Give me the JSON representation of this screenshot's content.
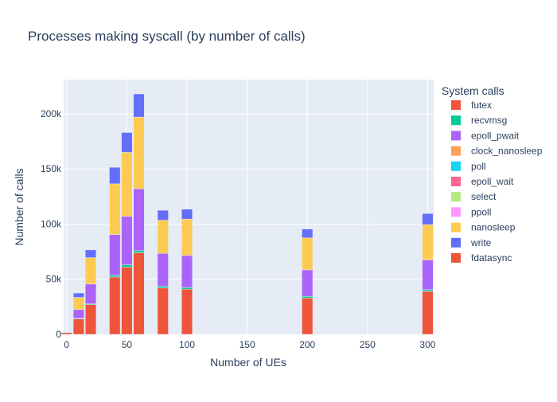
{
  "chart_data": {
    "type": "bar",
    "stacked": true,
    "title": "Processes making syscall (by number of calls)",
    "xlabel": "Number of UEs",
    "ylabel": "Number of calls",
    "xlim": [
      -2.5,
      305
    ],
    "ylim": [
      0,
      231000
    ],
    "x_ticks": [
      0,
      50,
      100,
      150,
      200,
      250,
      300
    ],
    "x_tick_labels": [
      "0",
      "50",
      "100",
      "150",
      "200",
      "250",
      "300"
    ],
    "y_ticks": [
      0,
      50000,
      100000,
      150000,
      200000
    ],
    "y_tick_labels": [
      "0",
      "50k",
      "100k",
      "150k",
      "200k"
    ],
    "grid": true,
    "legend_title": "System calls",
    "legend_position": "right",
    "x": [
      0,
      10,
      20,
      40,
      50,
      60,
      80,
      100,
      200,
      300
    ],
    "series": [
      {
        "name": "futex",
        "color": "#EF553B",
        "values": [
          1500,
          14000,
          27000,
          52000,
          61000,
          74000,
          42000,
          41000,
          33000,
          39000
        ]
      },
      {
        "name": "recvmsg",
        "color": "#00CC96",
        "values": [
          0,
          500,
          600,
          1500,
          2000,
          2000,
          1500,
          1500,
          1500,
          1500
        ]
      },
      {
        "name": "epoll_pwait",
        "color": "#AB63FA",
        "values": [
          0,
          8000,
          18000,
          37000,
          44000,
          56000,
          30000,
          29000,
          24000,
          27000
        ]
      },
      {
        "name": "clock_nanosleep",
        "color": "#FFA15A",
        "values": [
          0,
          0,
          0,
          0,
          0,
          0,
          0,
          0,
          0,
          0
        ]
      },
      {
        "name": "poll",
        "color": "#19D3F3",
        "values": [
          0,
          0,
          0,
          0,
          0,
          0,
          0,
          0,
          0,
          0
        ]
      },
      {
        "name": "epoll_wait",
        "color": "#FF6692",
        "values": [
          0,
          0,
          0,
          0,
          0,
          0,
          0,
          0,
          0,
          0
        ]
      },
      {
        "name": "select",
        "color": "#B6E880",
        "values": [
          0,
          0,
          0,
          0,
          0,
          0,
          0,
          0,
          0,
          0
        ]
      },
      {
        "name": "ppoll",
        "color": "#FF97FF",
        "values": [
          0,
          0,
          0,
          0,
          0,
          0,
          0,
          0,
          0,
          0
        ]
      },
      {
        "name": "nanosleep",
        "color": "#FECB52",
        "values": [
          0,
          11000,
          24000,
          46000,
          58000,
          65000,
          30000,
          33000,
          29000,
          32000
        ]
      },
      {
        "name": "write",
        "color": "#636EFA",
        "values": [
          0,
          4000,
          7000,
          15000,
          18000,
          21000,
          9000,
          9000,
          8000,
          10000
        ]
      },
      {
        "name": "fdatasync",
        "color": "#EF553B",
        "values": [
          0,
          0,
          0,
          0,
          0,
          0,
          0,
          0,
          0,
          0
        ]
      }
    ]
  }
}
